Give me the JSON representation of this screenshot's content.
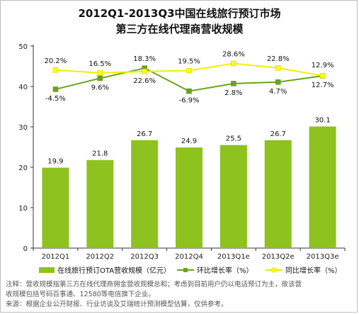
{
  "chart_data": {
    "type": "bar+line",
    "title": "2012Q1-2013Q3中国在线旅行预订市场",
    "subtitle": "第三方在线代理商营收规模",
    "categories": [
      "2012Q1",
      "2012Q2",
      "2012Q3",
      "2012Q4",
      "2013Q1e",
      "2013Q2e",
      "2013Q3e"
    ],
    "ylim": [
      0,
      50
    ],
    "yticks": [
      0,
      10,
      20,
      30,
      40,
      50
    ],
    "bar_series": {
      "name": "在线旅行预订OTA营收规模（亿元）",
      "values": [
        19.9,
        21.8,
        26.7,
        24.9,
        25.5,
        26.7,
        30.1
      ],
      "labels": [
        "19.9",
        "21.8",
        "26.7",
        "24.9",
        "25.5",
        "26.7",
        "30.1"
      ],
      "color": "#8dc21f"
    },
    "line_series": [
      {
        "name": "环比增长率（%）",
        "color": "#6aa516",
        "values": [
          -4.5,
          9.6,
          22.6,
          -6.9,
          2.8,
          4.7,
          12.7
        ],
        "labels": [
          "-4.5%",
          "9.6%",
          "22.6%",
          "-6.9%",
          "2.8%",
          "4.7%",
          "12.7%"
        ]
      },
      {
        "name": "同比增长率（%）",
        "color": "#ffff00",
        "values": [
          20.2,
          16.5,
          18.3,
          19.5,
          28.6,
          22.8,
          12.9
        ],
        "labels": [
          "20.2%",
          "16.5%",
          "18.3%",
          "19.5%",
          "28.6%",
          "22.8%",
          "12.9%"
        ]
      }
    ],
    "grid": false,
    "legend_position": "bottom"
  },
  "notes": {
    "line1": "注释：营收规模指第三方在线代理商佣金营收规模总和；考虑到目前用户仍以电话预订为主，故该营",
    "line2": "收规模包括号码百事通、12580等电信旗下企业。",
    "line3": "来源：根据企业公开财报、行业访谈及艾瑞统计预测模型估算，仅供参考。"
  }
}
